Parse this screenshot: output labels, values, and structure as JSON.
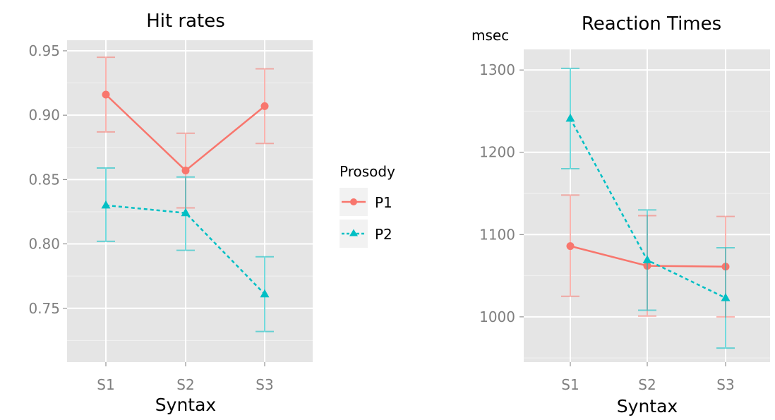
{
  "colors": {
    "p1": "#f8766d",
    "p2": "#00bfc4",
    "panel_bg": "#e5e5e5",
    "grid": "#ffffff",
    "tick_text": "#7f7f7f"
  },
  "legend": {
    "title": "Prosody",
    "entries": [
      {
        "label": "P1",
        "marker": "circle",
        "line": "solid"
      },
      {
        "label": "P2",
        "marker": "triangle",
        "line": "dashed"
      }
    ]
  },
  "chart_data": [
    {
      "type": "line",
      "title": "Hit rates",
      "xlabel": "Syntax",
      "ylabel": "",
      "unit_label": "",
      "categories": [
        "S1",
        "S2",
        "S3"
      ],
      "ylim": [
        0.7082,
        0.9582
      ],
      "yticks": [
        0.75,
        0.8,
        0.85,
        0.9,
        0.95
      ],
      "ytick_labels": [
        "0.75",
        "0.80",
        "0.85",
        "0.90",
        "0.95"
      ],
      "grid": true,
      "series": [
        {
          "name": "P1",
          "values": [
            0.916,
            0.857,
            0.907
          ],
          "err_low": [
            0.887,
            0.828,
            0.878
          ],
          "err_high": [
            0.945,
            0.886,
            0.936
          ]
        },
        {
          "name": "P2",
          "values": [
            0.83,
            0.824,
            0.761
          ],
          "err_low": [
            0.802,
            0.795,
            0.732
          ],
          "err_high": [
            0.859,
            0.852,
            0.79
          ]
        }
      ]
    },
    {
      "type": "line",
      "title": "Reaction Times",
      "xlabel": "Syntax",
      "ylabel": "",
      "unit_label": "msec",
      "categories": [
        "S1",
        "S2",
        "S3"
      ],
      "ylim": [
        945,
        1325
      ],
      "yticks": [
        1000,
        1100,
        1200,
        1300
      ],
      "ytick_labels": [
        "1000",
        "1100",
        "1200",
        "1300"
      ],
      "grid": true,
      "series": [
        {
          "name": "P1",
          "values": [
            1086,
            1062,
            1061
          ],
          "err_low": [
            1025,
            1001,
            1000
          ],
          "err_high": [
            1148,
            1123,
            1122
          ]
        },
        {
          "name": "P2",
          "values": [
            1241,
            1069,
            1023
          ],
          "err_low": [
            1180,
            1008,
            962
          ],
          "err_high": [
            1302,
            1130,
            1084
          ]
        }
      ]
    }
  ]
}
